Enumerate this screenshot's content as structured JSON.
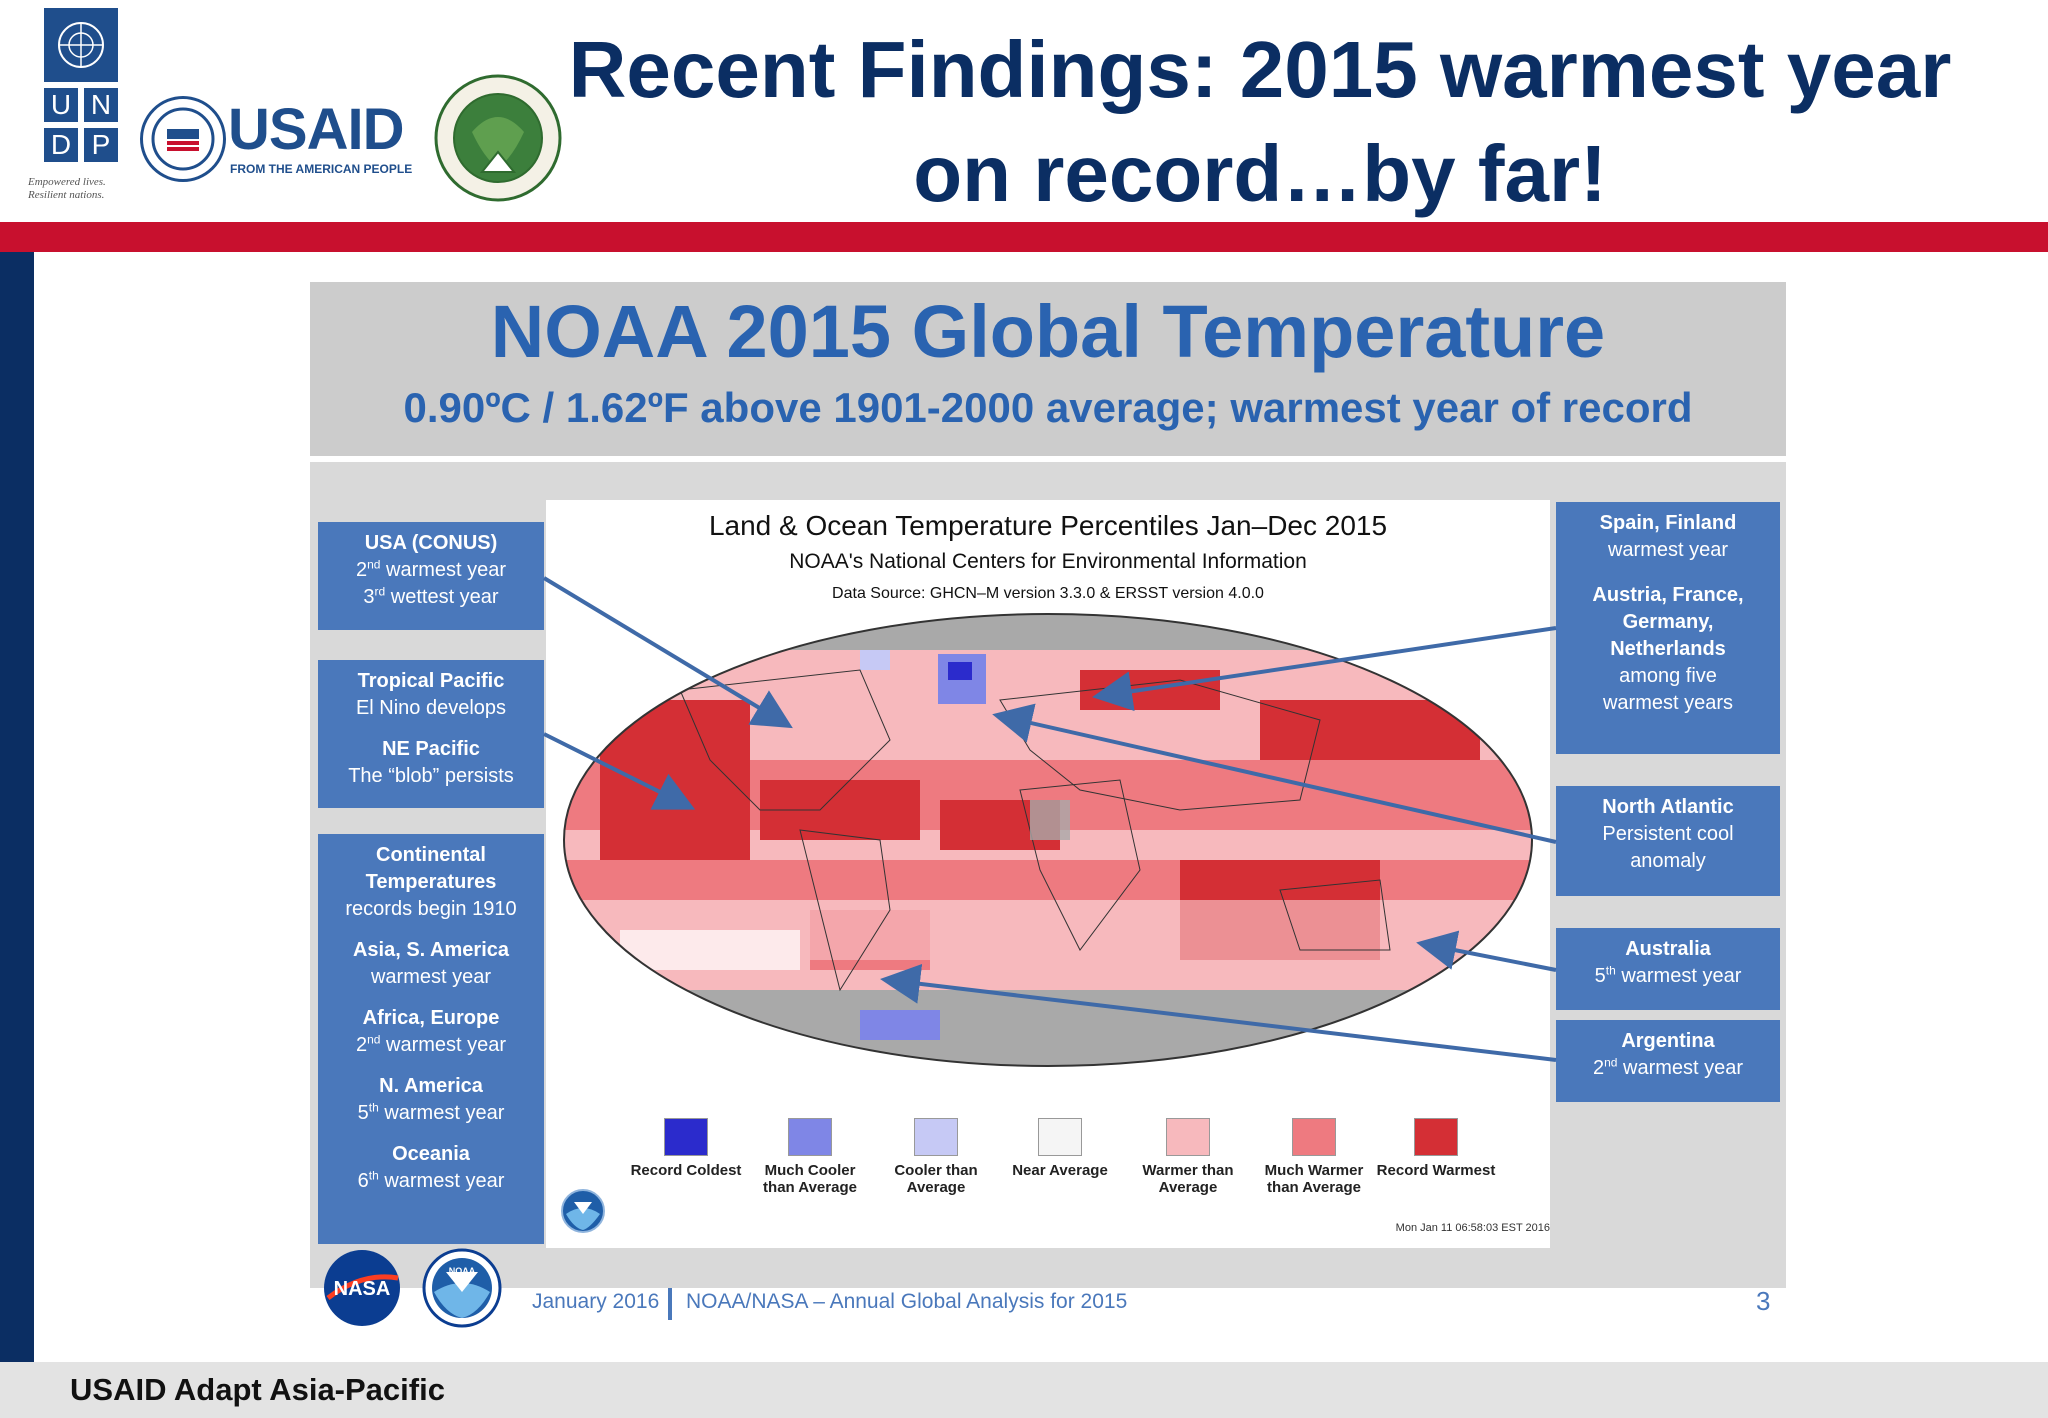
{
  "header": {
    "title": "Recent Findings: 2015 warmest year on record…by far!",
    "undp_letters": [
      "U",
      "N",
      "D",
      "P"
    ],
    "undp_tagline": [
      "Empowered lives.",
      "Resilient nations."
    ],
    "usaid_name": "USAID",
    "usaid_tagline": "FROM THE AMERICAN PEOPLE"
  },
  "slide": {
    "title": "NOAA 2015 Global Temperature",
    "subtitle": "0.90ºC / 1.62ºF above 1901-2000 average; warmest year of record",
    "map_title": "Land & Ocean Temperature Percentiles Jan–Dec 2015",
    "map_subtitle": "NOAA's National Centers for Environmental Information",
    "map_source": "Data Source: GHCN–M version 3.3.0 & ERSST version 4.0.0",
    "map_timestamp": "Mon Jan 11 06:58:03 EST 2016",
    "legend": [
      {
        "label": "Record Coldest",
        "color": "#2b2bcc"
      },
      {
        "label": "Much Cooler than Average",
        "color": "#7f86e6"
      },
      {
        "label": "Cooler than Average",
        "color": "#c6c9f5"
      },
      {
        "label": "Near Average",
        "color": "#f5f5f5"
      },
      {
        "label": "Warmer than Average",
        "color": "#f7b9bd"
      },
      {
        "label": "Much Warmer than Average",
        "color": "#ee7a80"
      },
      {
        "label": "Record Warmest",
        "color": "#d42f35"
      }
    ],
    "left_callouts": {
      "usa": {
        "head": "USA (CONUS)",
        "line1": "warmest year",
        "line2": "wettest year",
        "ord1": "2",
        "sup1": "nd",
        "ord2": "3",
        "sup2": "rd"
      },
      "pacific": {
        "head1": "Tropical Pacific",
        "line1": "El Nino develops",
        "head2": "NE Pacific",
        "line2": "The “blob” persists"
      },
      "continental": {
        "head": "Continental Temperatures",
        "sub": "records begin 1910",
        "asia_head": "Asia, S. America",
        "asia_line": "warmest year",
        "africa_head": "Africa, Europe",
        "africa_ord": "2",
        "africa_sup": "nd",
        "africa_line": "warmest year",
        "na_head": "N. America",
        "na_ord": "5",
        "na_sup": "th",
        "na_line": "warmest year",
        "oce_head": "Oceania",
        "oce_ord": "6",
        "oce_sup": "th",
        "oce_line": "warmest year"
      }
    },
    "right_callouts": {
      "spain": {
        "head": "Spain, Finland",
        "line": "warmest year",
        "head2": "Austria, France, Germany, Netherlands",
        "line2a": "among five",
        "line2b": "warmest years"
      },
      "atlantic": {
        "head": "North Atlantic",
        "line1": "Persistent cool",
        "line2": "anomaly"
      },
      "australia": {
        "head": "Australia",
        "ord": "5",
        "sup": "th",
        "line": "warmest year"
      },
      "argentina": {
        "head": "Argentina",
        "ord": "2",
        "sup": "nd",
        "line": "warmest year"
      }
    },
    "footer_date": "January 2016",
    "footer_text": "NOAA/NASA – Annual Global Analysis for 2015",
    "page_number": "3",
    "nasa_label": "NASA",
    "noaa_label": "NOAA"
  },
  "footer": {
    "text": "USAID Adapt Asia-Pacific"
  }
}
